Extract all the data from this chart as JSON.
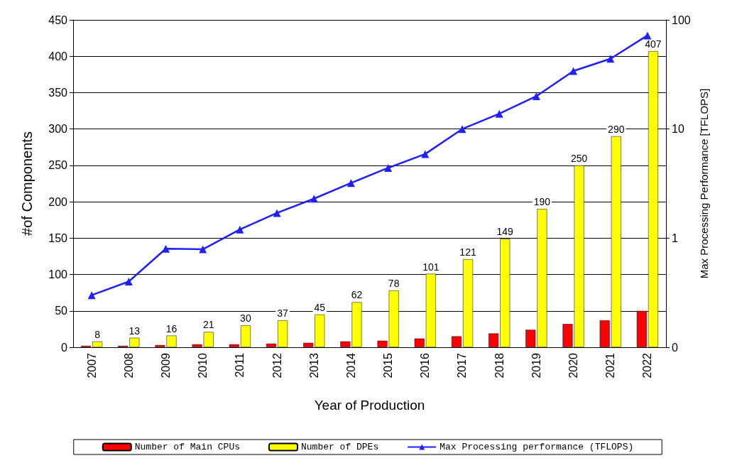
{
  "chart_data": {
    "type": "bar",
    "xlabel": "Year of Production",
    "ylabel": "#of Components",
    "y2label": "Max Processing Performance [TFLOPS]",
    "categories": [
      "2007",
      "2008",
      "2009",
      "2010",
      "2011",
      "2012",
      "2013",
      "2014",
      "2015",
      "2016",
      "2017",
      "2018",
      "2019",
      "2020",
      "2021",
      "2022"
    ],
    "series": [
      {
        "name": "Number of Main CPUs",
        "color": "#ff0000",
        "values": [
          2,
          2,
          3,
          4,
          4,
          5,
          6,
          8,
          9,
          12,
          15,
          19,
          24,
          32,
          37,
          50
        ]
      },
      {
        "name": "Number of DPEs",
        "color": "#ffff00",
        "values": [
          8,
          13,
          16,
          21,
          30,
          37,
          45,
          62,
          78,
          101,
          121,
          149,
          190,
          250,
          290,
          407
        ],
        "value_labels": [
          "8",
          "13",
          "16",
          "21",
          "30",
          "37",
          "45",
          "62",
          "78",
          "101",
          "121",
          "149",
          "190",
          "250",
          "290",
          "407"
        ]
      },
      {
        "name": "Max Processing performance (TFLOPS)",
        "type": "line",
        "axis": "y2",
        "color": "#1f1fff",
        "marker": "triangle",
        "values": [
          0.3,
          0.4,
          0.8,
          0.79,
          1.2,
          1.7,
          2.3,
          3.2,
          4.4,
          5.9,
          10,
          13.8,
          20,
          34,
          44,
          72
        ]
      }
    ],
    "ylim": [
      0,
      450
    ],
    "yticks": [
      0,
      50,
      100,
      150,
      200,
      250,
      300,
      350,
      400,
      450
    ],
    "y2lim": [
      0.1,
      100
    ],
    "y2ticks": [
      {
        "value": 0.1,
        "label": "0"
      },
      1,
      10,
      100
    ],
    "log": "y2",
    "grid": "y",
    "legend": "bottom"
  }
}
